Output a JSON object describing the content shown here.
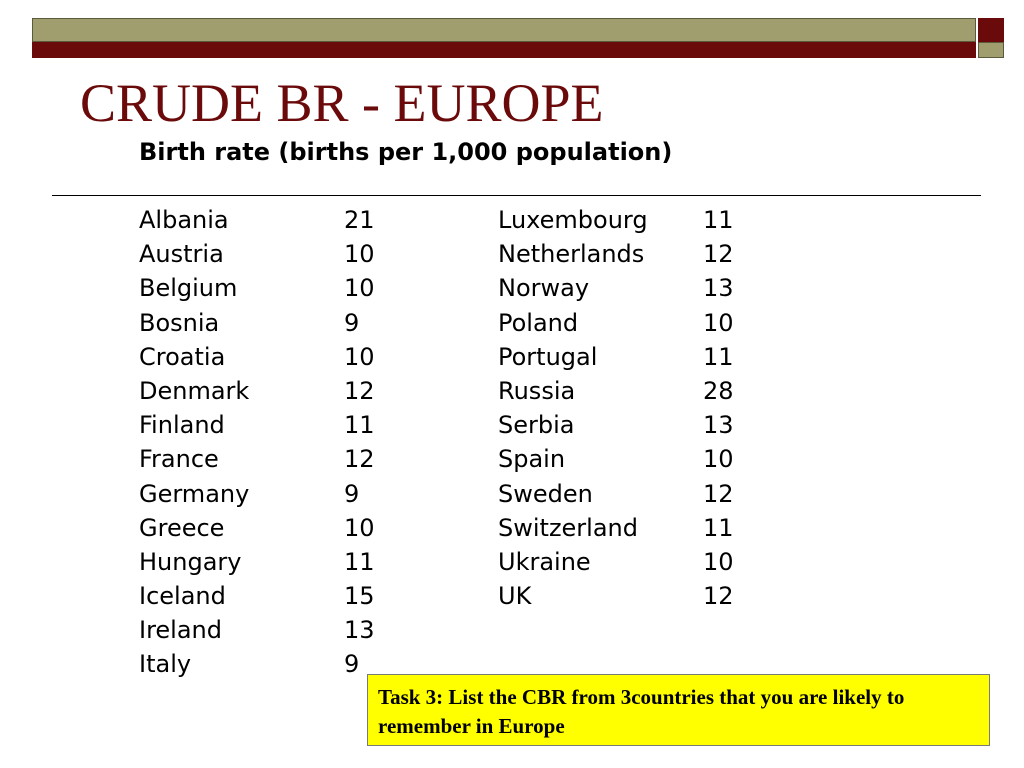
{
  "colors": {
    "olive": "#a09e6e",
    "maroon": "#6b0a0a",
    "task_bg": "#ffff00"
  },
  "slide": {
    "title": "CRUDE BR - EUROPE",
    "subtitle": "Birth rate (births per 1,000 population)"
  },
  "table": {
    "left": [
      {
        "country": "Albania",
        "rate": "21"
      },
      {
        "country": "Austria",
        "rate": "10"
      },
      {
        "country": "Belgium",
        "rate": "10"
      },
      {
        "country": "Bosnia",
        "rate": "9"
      },
      {
        "country": "Croatia",
        "rate": "10"
      },
      {
        "country": "Denmark",
        "rate": "12"
      },
      {
        "country": "Finland",
        "rate": "11"
      },
      {
        "country": "France",
        "rate": "12"
      },
      {
        "country": "Germany",
        "rate": "9"
      },
      {
        "country": "Greece",
        "rate": "10"
      },
      {
        "country": "Hungary",
        "rate": "11"
      },
      {
        "country": "Iceland",
        "rate": "15"
      },
      {
        "country": "Ireland",
        "rate": "13"
      },
      {
        "country": "Italy",
        "rate": "9"
      }
    ],
    "right": [
      {
        "country": "Luxembourg",
        "rate": "11"
      },
      {
        "country": "Netherlands",
        "rate": "12"
      },
      {
        "country": "Norway",
        "rate": "13"
      },
      {
        "country": "Poland",
        "rate": "10"
      },
      {
        "country": "Portugal",
        "rate": "11"
      },
      {
        "country": "Russia",
        "rate": "28"
      },
      {
        "country": "Serbia",
        "rate": "13"
      },
      {
        "country": "Spain",
        "rate": "10"
      },
      {
        "country": "Sweden",
        "rate": "12"
      },
      {
        "country": "Switzerland",
        "rate": "11"
      },
      {
        "country": "Ukraine",
        "rate": "10"
      },
      {
        "country": "UK",
        "rate": "12"
      }
    ]
  },
  "task": {
    "text": "Task 3: List the CBR from 3countries that you are likely to remember in Europe"
  }
}
